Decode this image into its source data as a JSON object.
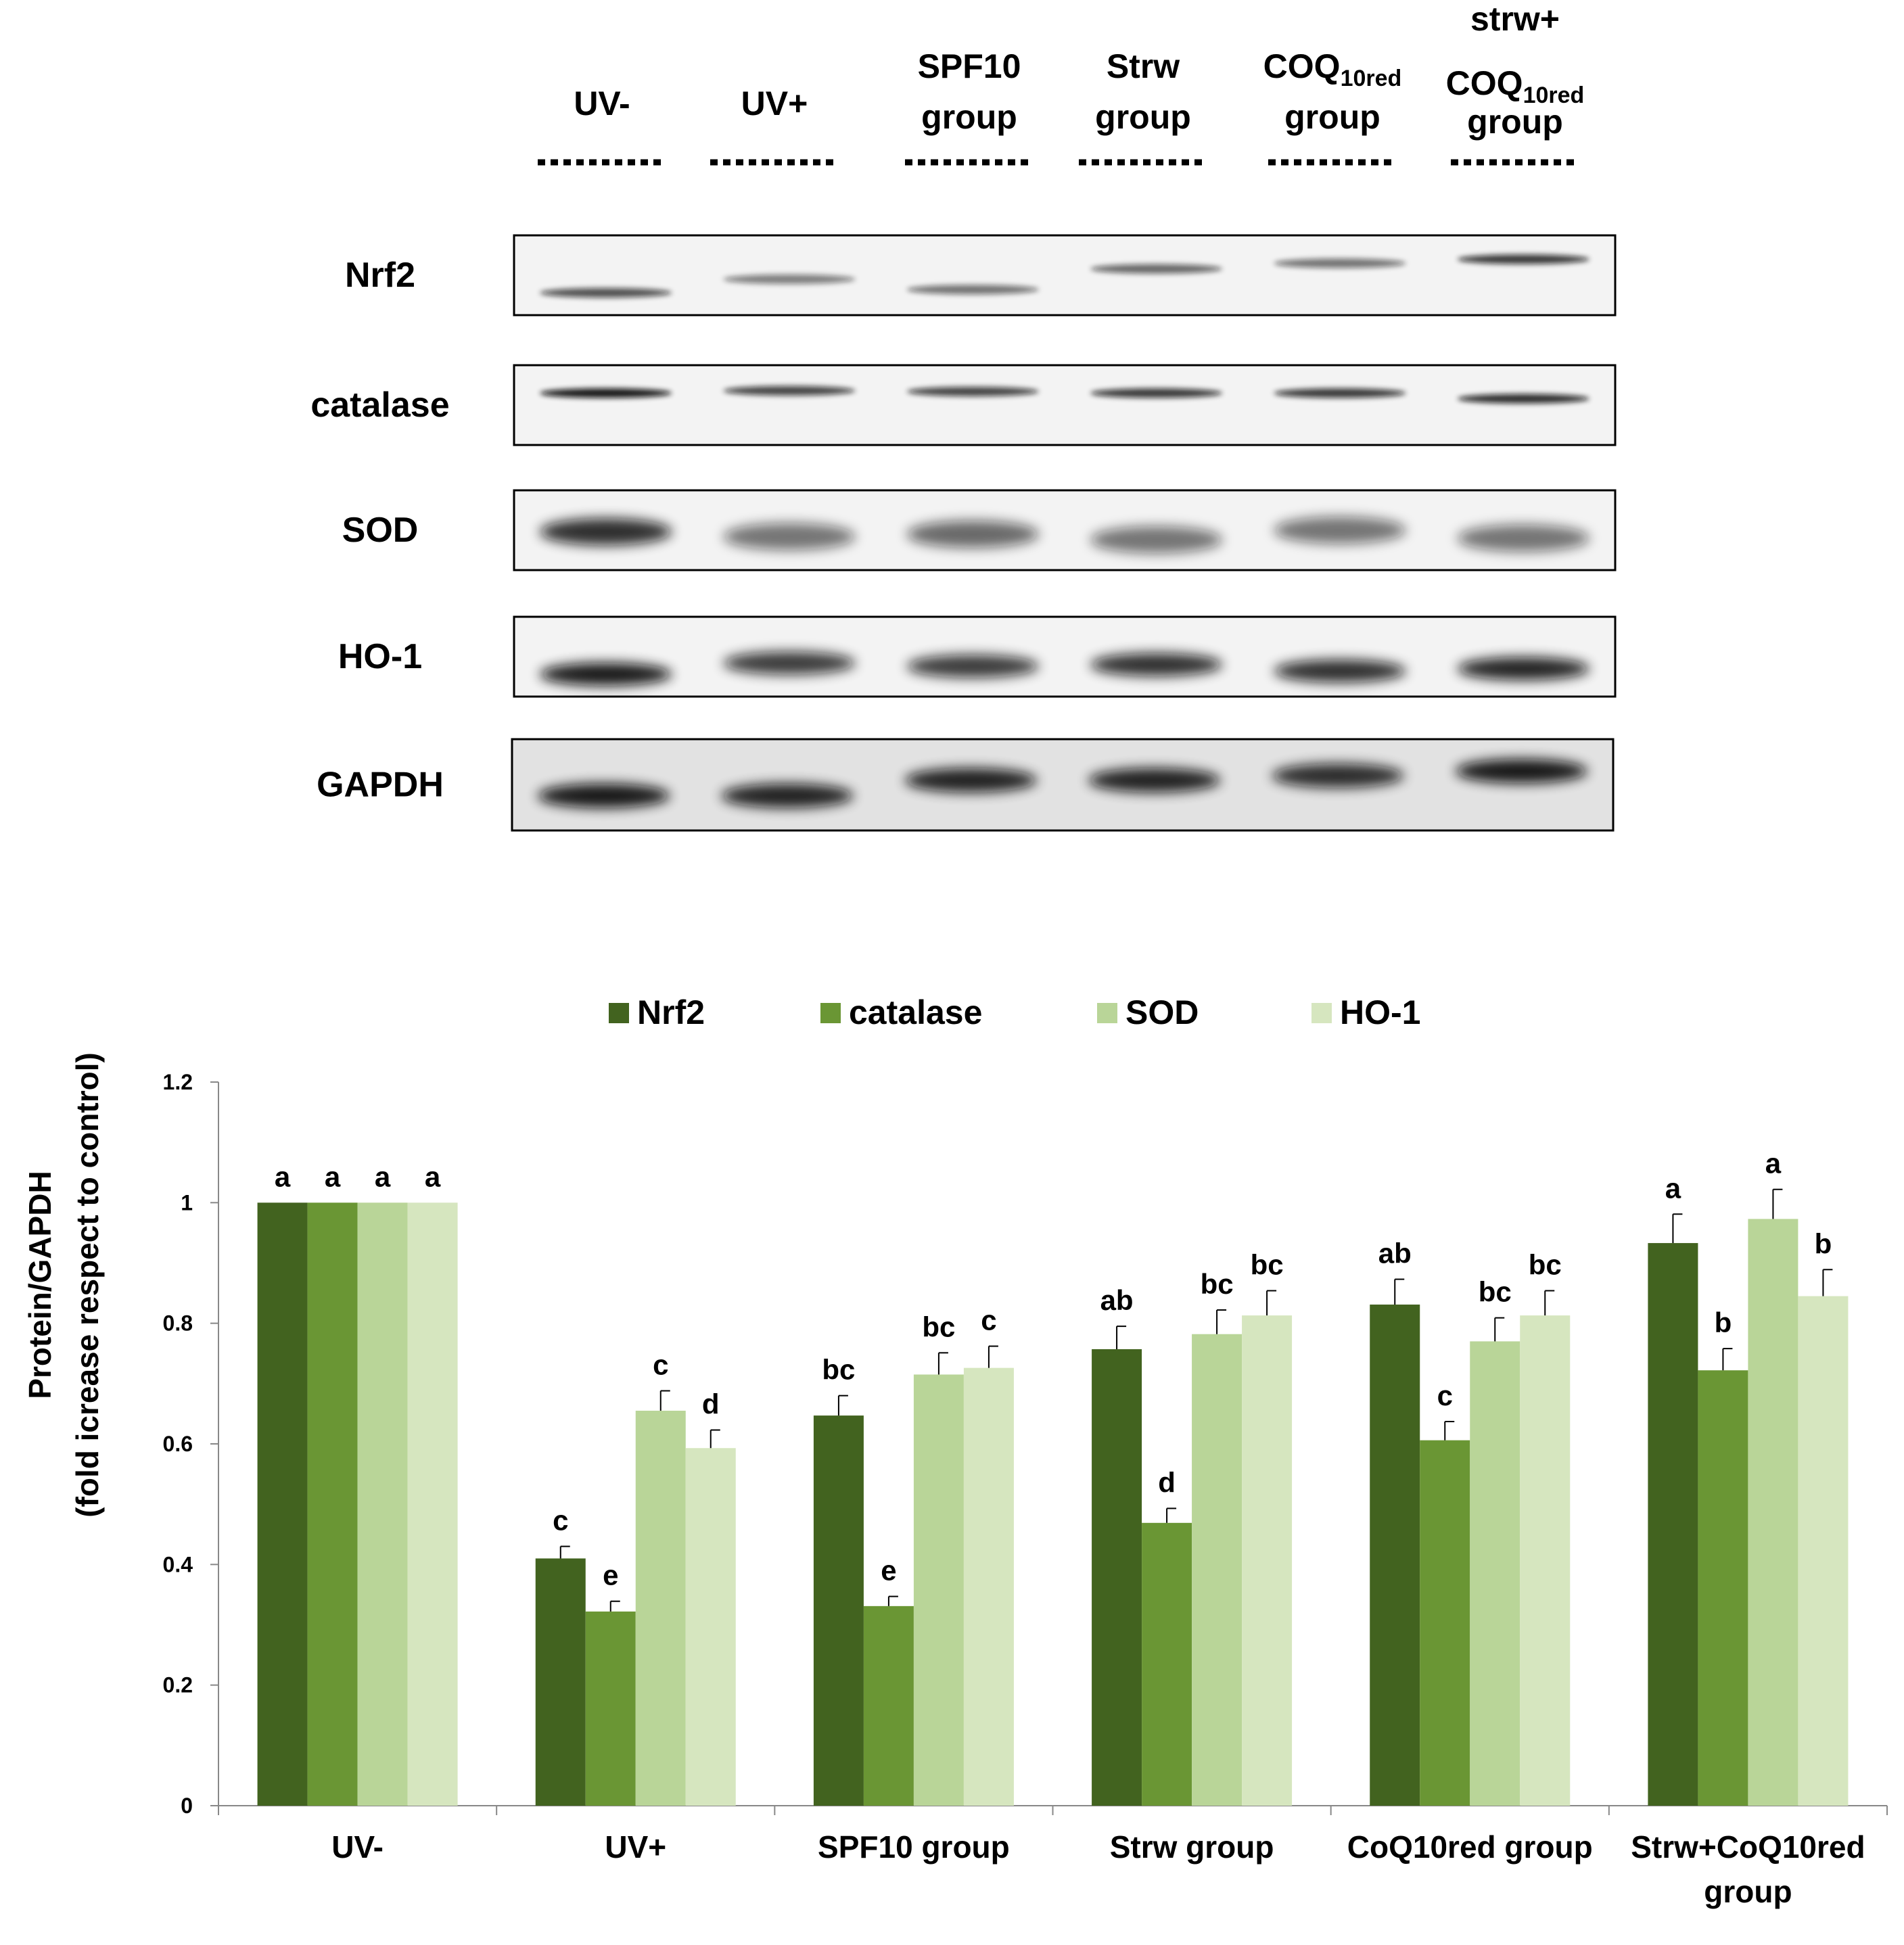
{
  "blot": {
    "lanes": [
      {
        "line1": "UV-",
        "sub1": "",
        "line2": "",
        "sub2": "",
        "line3": ""
      },
      {
        "line1": "UV+",
        "sub1": "",
        "line2": "",
        "sub2": "",
        "line3": ""
      },
      {
        "line1": "SPF10",
        "sub1": "",
        "line2": "group",
        "sub2": "",
        "line3": ""
      },
      {
        "line1": "Strw",
        "sub1": "",
        "line2": "group",
        "sub2": "",
        "line3": ""
      },
      {
        "line1": "COQ",
        "sub1": "10red",
        "line2": "group",
        "sub2": "",
        "line3": ""
      },
      {
        "line1": "strw+",
        "sub1": "",
        "line2": "COQ",
        "sub2": "10red",
        "line3": "group"
      }
    ],
    "proteins": [
      "Nrf2",
      "catalase",
      "SOD",
      "HO-1",
      "GAPDH"
    ]
  },
  "chart_data": {
    "type": "bar",
    "title": "",
    "ylabel": "Protein/GAPDH",
    "ylabel2": "(fold icrease respect to control)",
    "xlabel": "",
    "ylim": [
      0,
      1.2
    ],
    "yticks": [
      "0",
      "0.2",
      "0.4",
      "0.6",
      "0.8",
      "1",
      "1.2"
    ],
    "categories": [
      "UV-",
      "UV+",
      "SPF10 group",
      "Strw group",
      "CoQ10red group",
      "Strw+CoQ10red group"
    ],
    "category_lines": [
      [
        "UV-"
      ],
      [
        "UV+"
      ],
      [
        "SPF10 group"
      ],
      [
        "Strw group"
      ],
      [
        "CoQ10red group"
      ],
      [
        "Strw+CoQ10red",
        "group"
      ]
    ],
    "legend_position": "top",
    "series": [
      {
        "name": "Nrf2",
        "color": "#42631f",
        "values": [
          1.0,
          0.41,
          0.647,
          0.757,
          0.831,
          0.933
        ],
        "errors": [
          0.0,
          0.02,
          0.033,
          0.038,
          0.042,
          0.048
        ],
        "letters": [
          "a",
          "c",
          "bc",
          "ab",
          "ab",
          "a"
        ]
      },
      {
        "name": "catalase",
        "color": "#6a9634",
        "values": [
          1.0,
          0.322,
          0.331,
          0.469,
          0.606,
          0.722
        ],
        "errors": [
          0.0,
          0.017,
          0.016,
          0.024,
          0.031,
          0.036
        ],
        "letters": [
          "a",
          "e",
          "e",
          "d",
          "c",
          "b"
        ]
      },
      {
        "name": "SOD",
        "color": "#b9d598",
        "values": [
          1.0,
          0.655,
          0.715,
          0.782,
          0.77,
          0.973
        ],
        "errors": [
          0.0,
          0.033,
          0.036,
          0.04,
          0.039,
          0.049
        ],
        "letters": [
          "a",
          "c",
          "bc",
          "bc",
          "bc",
          "a"
        ]
      },
      {
        "name": "HO-1",
        "color": "#d6e6bf",
        "values": [
          1.0,
          0.593,
          0.726,
          0.813,
          0.813,
          0.845
        ],
        "errors": [
          0.0,
          0.03,
          0.036,
          0.041,
          0.041,
          0.044
        ],
        "letters": [
          "a",
          "d",
          "c",
          "bc",
          "bc",
          "b"
        ]
      }
    ]
  }
}
